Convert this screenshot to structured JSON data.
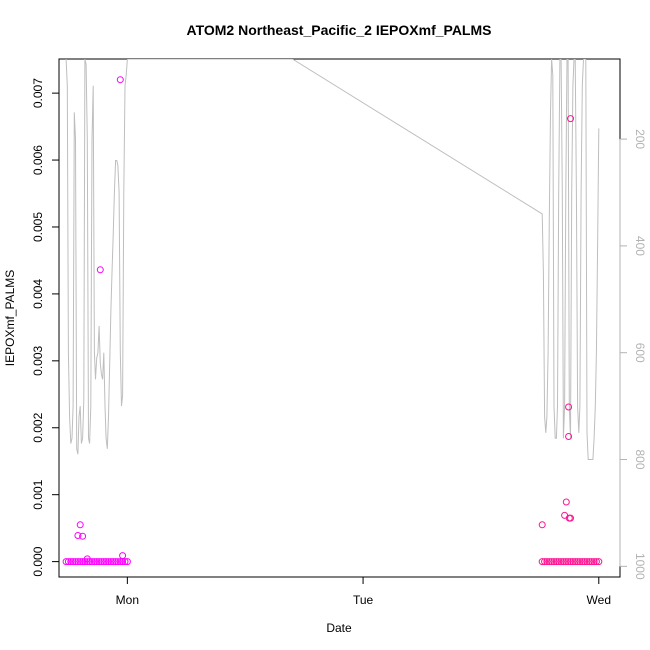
{
  "chart_data": {
    "type": "scatter",
    "title": "ATOM2 Northeast_Pacific_2 IEPOXmf_PALMS",
    "xlabel": "Date",
    "ylabel": "IEPOXmf_PALMS",
    "x_ticks": [
      "Mon",
      "Tue",
      "Wed"
    ],
    "x_tick_values": [
      0,
      1,
      2
    ],
    "xlim": [
      -0.29,
      2.09
    ],
    "ylim": [
      -0.00023,
      0.00751
    ],
    "y_ticks": [
      "0.000",
      "0.001",
      "0.002",
      "0.003",
      "0.004",
      "0.005",
      "0.006",
      "0.007"
    ],
    "y_tick_values": [
      0,
      0.001,
      0.002,
      0.003,
      0.004,
      0.005,
      0.006,
      0.007
    ],
    "right_axis": {
      "ticks": [
        "200",
        "400",
        "600",
        "800",
        "1000"
      ],
      "tick_values": [
        200,
        400,
        600,
        800,
        1000
      ],
      "ylim_inverted": [
        1020,
        50
      ],
      "color": "#b3b3b3"
    },
    "grid": false,
    "colors": {
      "points_day1": "#ff00ff",
      "points_day2": "#ff1493",
      "altitude_line": "#bebebe"
    },
    "series": [
      {
        "role": "points",
        "color": "#ff00ff",
        "x": [
          -0.26,
          -0.25,
          -0.24,
          -0.23,
          -0.22,
          -0.21,
          -0.2,
          -0.19,
          -0.18,
          -0.17,
          -0.16,
          -0.15,
          -0.14,
          -0.13,
          -0.12,
          -0.11,
          -0.1,
          -0.09,
          -0.08,
          -0.07,
          -0.06,
          -0.05,
          -0.04,
          -0.03,
          -0.02,
          -0.01,
          0.0,
          -0.21,
          -0.2,
          -0.19,
          -0.17,
          -0.115,
          -0.03,
          -0.02
        ],
        "values": [
          0,
          0,
          0,
          0,
          0,
          0,
          0,
          0,
          0,
          0,
          0,
          0,
          0,
          0,
          0,
          0,
          0,
          0,
          0,
          0,
          0,
          0,
          0,
          0,
          0,
          0,
          0,
          0.00039,
          0.00055,
          0.00038,
          4e-05,
          0.00436,
          0.0072,
          9e-05
        ]
      },
      {
        "role": "points",
        "color": "#ff1493",
        "x": [
          1.76,
          1.77,
          1.78,
          1.79,
          1.8,
          1.81,
          1.82,
          1.83,
          1.84,
          1.85,
          1.86,
          1.87,
          1.88,
          1.89,
          1.9,
          1.91,
          1.92,
          1.93,
          1.94,
          1.95,
          1.96,
          1.97,
          1.98,
          1.99,
          2.0,
          1.76,
          1.855,
          1.862,
          1.875,
          1.872,
          1.872,
          1.88,
          1.88
        ],
        "values": [
          0,
          0,
          0,
          0,
          0,
          0,
          0,
          0,
          0,
          0,
          0,
          0,
          0,
          0,
          0,
          0,
          0,
          0,
          0,
          0,
          0,
          0,
          0,
          0,
          0,
          0.00055,
          0.00069,
          0.00089,
          0.00065,
          0.00187,
          0.00231,
          0.00662,
          0.00065
        ]
      },
      {
        "role": "altitude",
        "color": "#bebebe",
        "x": [
          -0.26,
          -0.255,
          -0.25,
          -0.245,
          -0.24,
          -0.235,
          -0.23,
          -0.225,
          -0.22,
          -0.215,
          -0.21,
          -0.205,
          -0.2,
          -0.195,
          -0.19,
          -0.185,
          -0.18,
          -0.175,
          -0.17,
          -0.165,
          -0.16,
          -0.155,
          -0.15,
          -0.145,
          -0.14,
          -0.135,
          -0.13,
          -0.125,
          -0.12,
          -0.115,
          -0.11,
          -0.105,
          -0.1,
          -0.095,
          -0.09,
          -0.085,
          -0.08,
          -0.075,
          -0.07,
          -0.065,
          -0.06,
          -0.055,
          -0.05,
          -0.045,
          -0.04,
          -0.035,
          -0.03,
          -0.025,
          -0.02,
          -0.015,
          -0.01,
          -0.005,
          0.0,
          0.7,
          1.76,
          1.765,
          1.77,
          1.775,
          1.78,
          1.785,
          1.79,
          1.795,
          1.8,
          1.805,
          1.81,
          1.815,
          1.82,
          1.825,
          1.83,
          1.835,
          1.84,
          1.845,
          1.85,
          1.855,
          1.86,
          1.865,
          1.87,
          1.875,
          1.88,
          1.885,
          1.89,
          1.895,
          1.9,
          1.905,
          1.91,
          1.915,
          1.92,
          1.925,
          1.93,
          1.935,
          1.94,
          1.945,
          1.95,
          1.955,
          1.96,
          1.965,
          1.97,
          1.975,
          1.98,
          1.985,
          1.99,
          1.995,
          2.0
        ],
        "values": [
          50,
          100,
          600,
          720,
          770,
          760,
          700,
          150,
          200,
          780,
          790,
          720,
          700,
          770,
          760,
          690,
          50,
          60,
          200,
          760,
          770,
          700,
          200,
          100,
          600,
          650,
          610,
          600,
          550,
          620,
          640,
          650,
          600,
          700,
          760,
          780,
          720,
          620,
          520,
          450,
          380,
          300,
          240,
          240,
          250,
          300,
          600,
          700,
          680,
          300,
          100,
          80,
          50,
          50,
          340,
          450,
          720,
          750,
          720,
          600,
          350,
          150,
          50,
          80,
          700,
          760,
          760,
          700,
          300,
          50,
          50,
          300,
          760,
          700,
          300,
          50,
          50,
          700,
          760,
          300,
          100,
          50,
          50,
          300,
          700,
          750,
          700,
          300,
          100,
          50,
          50,
          50,
          750,
          800,
          800,
          800,
          800,
          800,
          760,
          700,
          600,
          400,
          180
        ]
      }
    ]
  }
}
